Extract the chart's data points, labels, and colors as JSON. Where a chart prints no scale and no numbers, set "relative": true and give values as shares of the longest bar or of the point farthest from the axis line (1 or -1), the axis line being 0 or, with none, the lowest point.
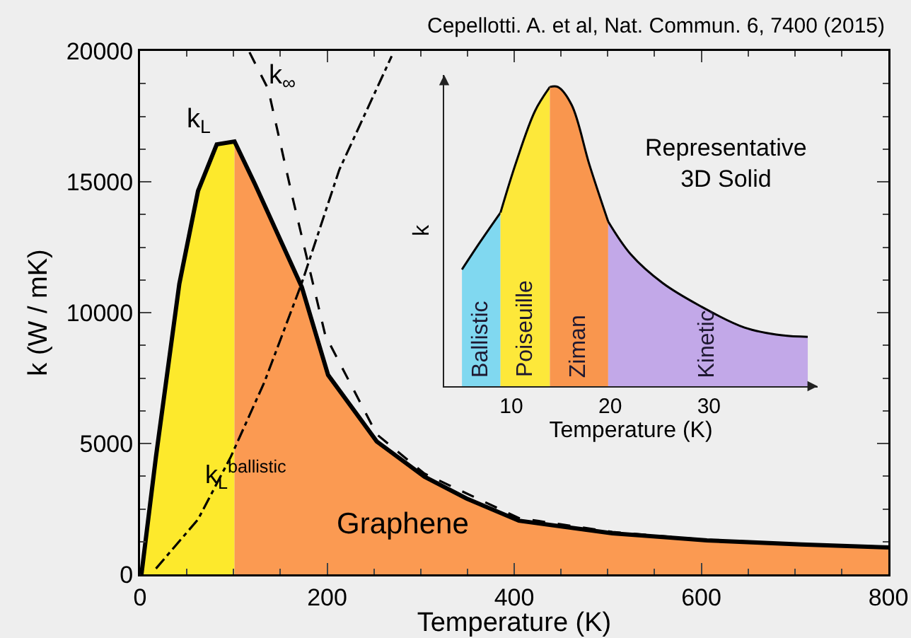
{
  "chart_data": [
    {
      "type": "line",
      "xlabel": "Temperature (K)",
      "ylabel": "k (W / mK)",
      "xlim": [
        0,
        800
      ],
      "ylim": [
        0,
        20000
      ],
      "xticks": [
        0,
        {
          "value": 50,
          "label": null
        },
        {
          "value": 100,
          "label": null
        },
        {
          "value": 150,
          "label": null
        },
        200,
        {
          "value": 250,
          "label": null
        },
        {
          "value": 300,
          "label": null
        },
        {
          "value": 350,
          "label": null
        },
        400,
        {
          "value": 450,
          "label": null
        },
        {
          "value": 500,
          "label": null
        },
        {
          "value": 550,
          "label": null
        },
        600,
        {
          "value": 650,
          "label": null
        },
        {
          "value": 700,
          "label": null
        },
        {
          "value": 750,
          "label": null
        },
        800
      ],
      "yticks": [
        0,
        {
          "value": 1250,
          "label": null
        },
        {
          "value": 2500,
          "label": null
        },
        {
          "value": 3750,
          "label": null
        },
        5000,
        {
          "value": 6250,
          "label": null
        },
        {
          "value": 7500,
          "label": null
        },
        {
          "value": 8750,
          "label": null
        },
        10000,
        {
          "value": 11250,
          "label": null
        },
        {
          "value": 12500,
          "label": null
        },
        {
          "value": 13750,
          "label": null
        },
        15000,
        {
          "value": 16250,
          "label": null
        },
        {
          "value": 17500,
          "label": null
        },
        {
          "value": 18750,
          "label": null
        },
        20000
      ],
      "grid": false,
      "legend": false,
      "series": [
        {
          "type": "area",
          "color": "#fde92c",
          "x": [
            1.5,
            17,
            42,
            62,
            82,
            101
          ],
          "values": [
            0,
            4490,
            11100,
            14650,
            16430,
            16540
          ]
        },
        {
          "type": "area",
          "color": "#fb9a52",
          "x": [
            101,
            123,
            173,
            201,
            253,
            304,
            349,
            405,
            505,
            606,
            707,
            800
          ],
          "values": [
            16540,
            14900,
            10970,
            7620,
            5080,
            3730,
            2900,
            2050,
            1570,
            1300,
            1140,
            1030
          ]
        },
        {
          "color": "#000000",
          "line_style": "solid",
          "x": [
            1.5,
            17,
            42,
            62,
            82,
            101,
            123,
            173,
            201,
            253,
            304,
            349,
            405,
            505,
            606,
            707,
            800
          ],
          "values": [
            0,
            4490,
            11100,
            14650,
            16430,
            16540,
            14900,
            10970,
            7620,
            5080,
            3730,
            2900,
            2050,
            1570,
            1300,
            1140,
            1030
          ]
        },
        {
          "color": "#000000",
          "line_style": "dashed",
          "x": [
            117,
            137,
            163,
            198,
            253,
            304,
            405,
            505,
            606,
            707,
            800
          ],
          "values": [
            19950,
            18540,
            14400,
            9140,
            5350,
            3850,
            2150,
            1620,
            1320,
            1150,
            1050
          ]
        },
        {
          "color": "#000000",
          "line_style": "dashdot",
          "x": [
            17,
            62,
            97,
            133,
            173,
            213,
            269
          ],
          "values": [
            220,
            2100,
            4490,
            7350,
            11140,
            15460,
            19800
          ]
        }
      ],
      "annotations": [
        "k$_{L}$",
        "k$_{∞}$",
        "k$_{L}$$^{ballistic}$",
        "Graphene",
        "Cepellotti. A. et al, Nat. Commun. 6, 7400 (2015)"
      ]
    },
    {
      "type": "area",
      "relative": true,
      "title": "Representative\n3D Solid",
      "xlabel": "Temperature (K)",
      "ylabel": "k",
      "xlim": [
        3.2,
        41
      ],
      "xticks": [
        10,
        20,
        30
      ],
      "grid": false,
      "legend": false,
      "series": [
        {
          "name": "Ballistic",
          "color": "#80d8f0",
          "x": [
            5,
            6.8,
            8.9
          ],
          "values": [
            0.39,
            0.48,
            0.58
          ]
        },
        {
          "name": "Poiseuille",
          "color": "#fde83a",
          "x": [
            8.9,
            10.5,
            12.4,
            13.9
          ],
          "values": [
            0.58,
            0.75,
            0.92,
            1.0
          ]
        },
        {
          "name": "Ziman",
          "color": "#f9964e",
          "x": [
            13.9,
            14.7,
            16.1,
            17.9,
            19.8
          ],
          "values": [
            1.0,
            1.0,
            0.94,
            0.74,
            0.55
          ]
        },
        {
          "name": "Kinetic",
          "color": "#c2a8e8",
          "x": [
            19.8,
            22.1,
            25.3,
            29,
            33.6,
            37.4,
            40
          ],
          "values": [
            0.55,
            0.44,
            0.345,
            0.27,
            0.196,
            0.17,
            0.165
          ]
        }
      ]
    }
  ]
}
